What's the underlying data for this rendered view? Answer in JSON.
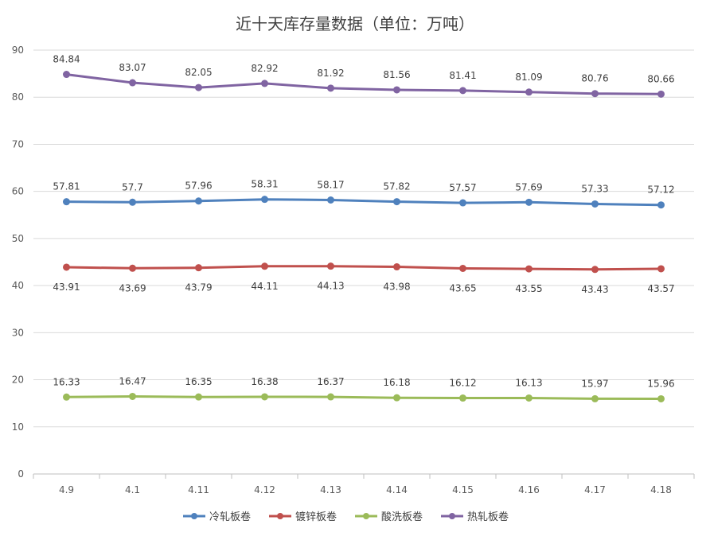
{
  "chart_data": {
    "type": "line",
    "title": "近十天库存量数据（单位：万吨）",
    "categories": [
      "4.9",
      "4.1",
      "4.11",
      "4.12",
      "4.13",
      "4.14",
      "4.15",
      "4.16",
      "4.17",
      "4.18"
    ],
    "series": [
      {
        "name": "冷轧板卷",
        "color": "#4f81bd",
        "values": [
          57.81,
          57.7,
          57.96,
          58.31,
          58.17,
          57.82,
          57.57,
          57.69,
          57.33,
          57.12
        ],
        "labels": [
          "57.81",
          "57.7",
          "57.96",
          "58.31",
          "58.17",
          "57.82",
          "57.57",
          "57.69",
          "57.33",
          "57.12"
        ]
      },
      {
        "name": "镀锌板卷",
        "color": "#c0504d",
        "values": [
          43.91,
          43.69,
          43.79,
          44.11,
          44.13,
          43.98,
          43.65,
          43.55,
          43.43,
          43.57
        ],
        "labels": [
          "43.91",
          "43.69",
          "43.79",
          "44.11",
          "44.13",
          "43.98",
          "43.65",
          "43.55",
          "43.43",
          "43.57"
        ]
      },
      {
        "name": "酸洗板卷",
        "color": "#9bbb59",
        "values": [
          16.33,
          16.47,
          16.35,
          16.38,
          16.37,
          16.18,
          16.12,
          16.13,
          15.97,
          15.96
        ],
        "labels": [
          "16.33",
          "16.47",
          "16.35",
          "16.38",
          "16.37",
          "16.18",
          "16.12",
          "16.13",
          "15.97",
          "15.96"
        ]
      },
      {
        "name": "热轧板卷",
        "color": "#8064a2",
        "values": [
          84.84,
          83.07,
          82.05,
          82.92,
          81.92,
          81.56,
          81.41,
          81.09,
          80.76,
          80.66
        ],
        "labels": [
          "84.84",
          "83.07",
          "82.05",
          "82.92",
          "81.92",
          "81.56",
          "81.41",
          "81.09",
          "80.76",
          "80.66"
        ]
      }
    ],
    "ylim": [
      0,
      90
    ],
    "yticks": [
      "0",
      "10",
      "20",
      "30",
      "40",
      "50",
      "60",
      "70",
      "80",
      "90"
    ],
    "grid": true,
    "legend": "bottom",
    "label_position": [
      "above",
      "below",
      "above",
      "above"
    ],
    "colors": {
      "grid": "#d9d9d9",
      "axis": "#bfbfbf",
      "text": "#595959"
    }
  }
}
